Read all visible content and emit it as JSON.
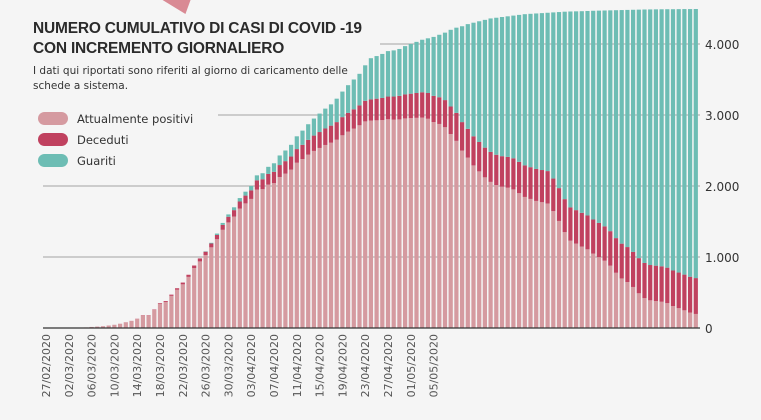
{
  "title_line1": "NUMERO CUMULATIVO DI CASI DI COVID -19",
  "title_line2": "CON INCREMENTO GIORNALIERO",
  "subtitle": "I dati qui riportati sono riferiti al giorno di caricamento delle schede a sistema.",
  "chart_data": {
    "type": "bar",
    "stacked": true,
    "title": "NUMERO CUMULATIVO DI CASI DI COVID -19 CON INCREMENTO GIORNALIERO",
    "ylim": [
      0,
      4500
    ],
    "yticks": [
      0,
      1000,
      2000,
      3000,
      4000
    ],
    "ytick_labels": [
      "0",
      "1.000",
      "2.000",
      "3.000",
      "4.000"
    ],
    "grid": true,
    "legend_position": "top-left",
    "start_date": "27/02/2020",
    "xtick_labels": [
      "27/02/2020",
      "02/03/2020",
      "06/03/2020",
      "10/03/2020",
      "14/03/2020",
      "18/03/2020",
      "22/03/2020",
      "26/03/2020",
      "30/03/2020",
      "03/04/2020",
      "07/04/2020",
      "11/04/2020",
      "15/04/2020",
      "19/04/2020",
      "23/04/2020",
      "27/04/2020",
      "01/05/2020",
      "05/05/2020"
    ],
    "series": [
      {
        "name": "Attualmente positivi",
        "color": "#d59aa0",
        "values": [
          0,
          0,
          0,
          0,
          0,
          0,
          3,
          8,
          15,
          20,
          24,
          34,
          44,
          59,
          78,
          98,
          127,
          176,
          175,
          253,
          340,
          367,
          453,
          539,
          615,
          720,
          844,
          938,
          1027,
          1136,
          1250,
          1383,
          1487,
          1570,
          1682,
          1755,
          1818,
          1950,
          1955,
          2020,
          2040,
          2127,
          2174,
          2231,
          2328,
          2380,
          2442,
          2494,
          2536,
          2578,
          2610,
          2652,
          2714,
          2766,
          2808,
          2855,
          2910,
          2922,
          2925,
          2928,
          2940,
          2934,
          2938,
          2952,
          2956,
          2960,
          2964,
          2947,
          2900,
          2874,
          2828,
          2732,
          2636,
          2500,
          2400,
          2290,
          2206,
          2122,
          2058,
          2014,
          1990,
          1976,
          1952,
          1899,
          1846,
          1818,
          1790,
          1772,
          1754,
          1646,
          1508,
          1350,
          1230,
          1189,
          1148,
          1108,
          1048,
          998,
          948,
          878,
          778,
          698,
          648,
          578,
          489,
          420,
          390,
          380,
          370,
          350,
          309,
          279,
          249,
          218,
          198
        ]
      },
      {
        "name": "Deceduti",
        "color": "#c0415f",
        "values": [
          0,
          0,
          0,
          0,
          0,
          0,
          0,
          0,
          0,
          0,
          1,
          1,
          1,
          1,
          2,
          2,
          3,
          4,
          5,
          7,
          10,
          13,
          17,
          21,
          25,
          30,
          36,
          42,
          48,
          54,
          60,
          70,
          80,
          90,
          100,
          110,
          120,
          130,
          140,
          150,
          160,
          168,
          176,
          184,
          192,
          200,
          208,
          216,
          224,
          232,
          240,
          248,
          256,
          264,
          272,
          280,
          290,
          298,
          305,
          312,
          320,
          326,
          332,
          338,
          344,
          350,
          356,
          363,
          370,
          376,
          382,
          388,
          394,
          400,
          405,
          410,
          414,
          418,
          422,
          426,
          430,
          434,
          438,
          441,
          444,
          447,
          450,
          453,
          456,
          459,
          462,
          465,
          468,
          471,
          474,
          477,
          480,
          482,
          484,
          486,
          488,
          490,
          492,
          494,
          495,
          496,
          497,
          498,
          499,
          500,
          501,
          502,
          503,
          504,
          505
        ]
      },
      {
        "name": "Guariti",
        "color": "#6dbdb4",
        "values": [
          0,
          0,
          0,
          0,
          0,
          0,
          0,
          0,
          0,
          0,
          0,
          0,
          0,
          0,
          0,
          0,
          0,
          0,
          0,
          0,
          0,
          0,
          0,
          0,
          0,
          0,
          0,
          0,
          5,
          10,
          20,
          27,
          33,
          40,
          48,
          55,
          62,
          70,
          85,
          100,
          120,
          135,
          150,
          165,
          180,
          200,
          220,
          240,
          260,
          280,
          300,
          330,
          360,
          390,
          420,
          445,
          500,
          580,
          600,
          620,
          640,
          650,
          660,
          680,
          700,
          720,
          740,
          770,
          830,
          880,
          950,
          1080,
          1200,
          1350,
          1475,
          1600,
          1700,
          1800,
          1880,
          1930,
          1960,
          1980,
          2010,
          2070,
          2130,
          2160,
          2190,
          2210,
          2230,
          2340,
          2480,
          2640,
          2760,
          2800,
          2840,
          2880,
          2940,
          2990,
          3040,
          3110,
          3210,
          3290,
          3340,
          3410,
          3500,
          3570,
          3600,
          3610,
          3620,
          3640,
          3680,
          3710,
          3740,
          3770,
          3790
        ]
      }
    ]
  }
}
